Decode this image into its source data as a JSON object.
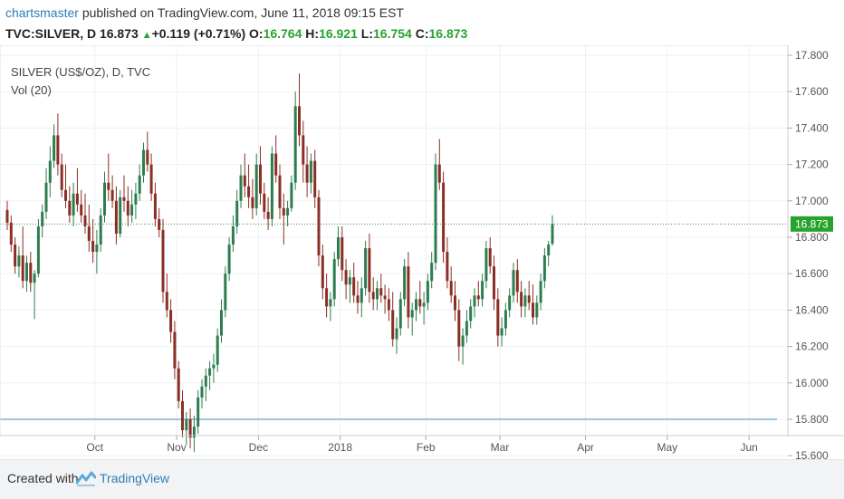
{
  "header": {
    "author": "chartsmaster",
    "published_text": "published on TradingView.com, June 11, 2018 09:15 EST",
    "symbol": "TVC:SILVER, D",
    "last": "16.873",
    "change": "+0.119 (+0.71%)",
    "open_label": "O:",
    "open": "16.764",
    "high_label": "H:",
    "high": "16.921",
    "low_label": "L:",
    "low": "16.754",
    "close_label": "C:",
    "close": "16.873"
  },
  "footer": {
    "created_with": "Created with",
    "brand": "TradingView"
  },
  "colors": {
    "up": "#2e7d4f",
    "down": "#8b2e24",
    "grid": "#eef0f2",
    "price_line": "#27a32d",
    "support": "#9fc6e0",
    "axis_text": "#555555"
  },
  "chart_data": {
    "type": "candlestick",
    "title": "SILVER (US$/OZ), D, TVC",
    "indicator": "Vol (20)",
    "ylim": [
      15.5,
      17.8
    ],
    "y_ticks": [
      "17.800",
      "17.600",
      "17.400",
      "17.200",
      "17.000",
      "16.800",
      "16.600",
      "16.400",
      "16.200",
      "16.000",
      "15.800",
      "15.600"
    ],
    "x_labels": [
      "Oct",
      "Nov",
      "Dec",
      "2018",
      "Feb",
      "Mar",
      "Apr",
      "May",
      "Jun"
    ],
    "x_label_pos": [
      22.5,
      43.5,
      64.5,
      85.5,
      107.5,
      126.5,
      148.5,
      169.5,
      190.5
    ],
    "last_price": 16.873,
    "support_level": 15.8,
    "candles": [
      [
        16.95,
        17.0,
        16.84,
        16.88
      ],
      [
        16.88,
        16.92,
        16.72,
        16.76
      ],
      [
        16.76,
        16.8,
        16.6,
        16.64
      ],
      [
        16.64,
        16.75,
        16.58,
        16.7
      ],
      [
        16.7,
        16.86,
        16.52,
        16.56
      ],
      [
        16.56,
        16.7,
        16.5,
        16.66
      ],
      [
        16.66,
        16.72,
        16.5,
        16.55
      ],
      [
        16.55,
        16.62,
        16.35,
        16.6
      ],
      [
        16.6,
        16.9,
        16.58,
        16.86
      ],
      [
        16.86,
        16.98,
        16.8,
        16.94
      ],
      [
        16.94,
        17.18,
        16.9,
        17.1
      ],
      [
        17.1,
        17.3,
        17.02,
        17.22
      ],
      [
        17.22,
        17.42,
        17.18,
        17.36
      ],
      [
        17.36,
        17.48,
        17.14,
        17.2
      ],
      [
        17.2,
        17.26,
        17.02,
        17.06
      ],
      [
        17.06,
        17.2,
        16.96,
        17.0
      ],
      [
        17.0,
        17.08,
        16.88,
        16.92
      ],
      [
        16.92,
        17.1,
        16.86,
        17.04
      ],
      [
        17.04,
        17.18,
        16.94,
        16.98
      ],
      [
        16.98,
        17.06,
        16.88,
        16.92
      ],
      [
        16.92,
        17.04,
        16.82,
        16.86
      ],
      [
        16.86,
        16.98,
        16.72,
        16.78
      ],
      [
        16.78,
        16.9,
        16.66,
        16.72
      ],
      [
        16.72,
        16.84,
        16.6,
        16.76
      ],
      [
        16.76,
        16.96,
        16.72,
        16.92
      ],
      [
        16.92,
        17.16,
        16.88,
        17.1
      ],
      [
        17.1,
        17.26,
        17.0,
        17.06
      ],
      [
        17.06,
        17.14,
        16.96,
        17.0
      ],
      [
        17.0,
        17.08,
        16.76,
        16.82
      ],
      [
        16.82,
        17.06,
        16.8,
        17.02
      ],
      [
        17.02,
        17.14,
        16.94,
        17.0
      ],
      [
        17.0,
        17.08,
        16.86,
        16.92
      ],
      [
        16.92,
        17.06,
        16.88,
        16.98
      ],
      [
        16.98,
        17.1,
        16.9,
        17.04
      ],
      [
        17.04,
        17.2,
        17.0,
        17.14
      ],
      [
        17.14,
        17.32,
        17.1,
        17.28
      ],
      [
        17.28,
        17.38,
        17.16,
        17.2
      ],
      [
        17.2,
        17.26,
        17.0,
        17.04
      ],
      [
        17.04,
        17.1,
        16.86,
        16.9
      ],
      [
        16.9,
        16.96,
        16.8,
        16.84
      ],
      [
        16.84,
        16.9,
        16.44,
        16.5
      ],
      [
        16.5,
        16.6,
        16.36,
        16.4
      ],
      [
        16.4,
        16.46,
        16.22,
        16.28
      ],
      [
        16.28,
        16.34,
        16.02,
        16.08
      ],
      [
        16.08,
        16.12,
        15.86,
        15.9
      ],
      [
        15.9,
        15.96,
        15.7,
        15.74
      ],
      [
        15.74,
        15.84,
        15.66,
        15.8
      ],
      [
        15.8,
        15.86,
        15.64,
        15.7
      ],
      [
        15.7,
        15.82,
        15.62,
        15.76
      ],
      [
        15.76,
        15.96,
        15.72,
        15.92
      ],
      [
        15.92,
        16.02,
        15.86,
        15.98
      ],
      [
        15.98,
        16.08,
        15.9,
        16.04
      ],
      [
        16.04,
        16.12,
        15.96,
        16.08
      ],
      [
        16.08,
        16.16,
        16.0,
        16.1
      ],
      [
        16.1,
        16.3,
        16.06,
        16.26
      ],
      [
        16.26,
        16.46,
        16.22,
        16.4
      ],
      [
        16.4,
        16.64,
        16.36,
        16.6
      ],
      [
        16.6,
        16.8,
        16.56,
        16.76
      ],
      [
        16.76,
        16.92,
        16.72,
        16.86
      ],
      [
        16.86,
        17.06,
        16.82,
        17.0
      ],
      [
        17.0,
        17.2,
        16.96,
        17.14
      ],
      [
        17.14,
        17.26,
        17.02,
        17.08
      ],
      [
        17.08,
        17.2,
        16.96,
        17.02
      ],
      [
        17.02,
        17.12,
        16.9,
        16.96
      ],
      [
        16.96,
        17.26,
        16.92,
        17.2
      ],
      [
        17.2,
        17.3,
        16.98,
        17.04
      ],
      [
        17.04,
        17.1,
        16.9,
        16.94
      ],
      [
        16.94,
        17.02,
        16.84,
        16.9
      ],
      [
        16.9,
        17.3,
        16.86,
        17.26
      ],
      [
        17.26,
        17.36,
        17.1,
        17.14
      ],
      [
        17.14,
        17.2,
        16.9,
        16.96
      ],
      [
        16.96,
        17.04,
        16.76,
        16.92
      ],
      [
        16.92,
        17.0,
        16.86,
        16.96
      ],
      [
        16.96,
        17.14,
        16.94,
        17.1
      ],
      [
        17.1,
        17.6,
        17.06,
        17.52
      ],
      [
        17.52,
        17.7,
        17.3,
        17.36
      ],
      [
        17.36,
        17.44,
        17.1,
        17.2
      ],
      [
        17.2,
        17.3,
        17.02,
        17.1
      ],
      [
        17.1,
        17.26,
        17.04,
        17.22
      ],
      [
        17.22,
        17.28,
        16.96,
        17.02
      ],
      [
        17.02,
        17.06,
        16.64,
        16.7
      ],
      [
        16.7,
        16.76,
        16.46,
        16.52
      ],
      [
        16.52,
        16.6,
        16.36,
        16.42
      ],
      [
        16.42,
        16.5,
        16.34,
        16.46
      ],
      [
        16.46,
        16.72,
        16.42,
        16.68
      ],
      [
        16.68,
        16.86,
        16.64,
        16.8
      ],
      [
        16.8,
        16.86,
        16.56,
        16.62
      ],
      [
        16.62,
        16.68,
        16.46,
        16.54
      ],
      [
        16.54,
        16.62,
        16.44,
        16.58
      ],
      [
        16.58,
        16.66,
        16.44,
        16.48
      ],
      [
        16.48,
        16.56,
        16.38,
        16.44
      ],
      [
        16.44,
        16.58,
        16.36,
        16.52
      ],
      [
        16.52,
        16.78,
        16.48,
        16.74
      ],
      [
        16.74,
        16.82,
        16.44,
        16.5
      ],
      [
        16.5,
        16.58,
        16.4,
        16.46
      ],
      [
        16.46,
        16.56,
        16.4,
        16.52
      ],
      [
        16.52,
        16.6,
        16.44,
        16.48
      ],
      [
        16.48,
        16.54,
        16.38,
        16.46
      ],
      [
        16.46,
        16.52,
        16.34,
        16.4
      ],
      [
        16.4,
        16.5,
        16.2,
        16.24
      ],
      [
        16.24,
        16.36,
        16.16,
        16.3
      ],
      [
        16.3,
        16.5,
        16.26,
        16.46
      ],
      [
        16.46,
        16.68,
        16.42,
        16.64
      ],
      [
        16.64,
        16.72,
        16.3,
        16.36
      ],
      [
        16.36,
        16.44,
        16.26,
        16.4
      ],
      [
        16.4,
        16.5,
        16.34,
        16.46
      ],
      [
        16.46,
        16.56,
        16.38,
        16.42
      ],
      [
        16.42,
        16.5,
        16.32,
        16.44
      ],
      [
        16.44,
        16.6,
        16.4,
        16.56
      ],
      [
        16.56,
        16.72,
        16.52,
        16.66
      ],
      [
        16.66,
        17.26,
        16.62,
        17.2
      ],
      [
        17.2,
        17.34,
        17.06,
        17.1
      ],
      [
        17.1,
        17.16,
        16.66,
        16.72
      ],
      [
        16.72,
        16.8,
        16.52,
        16.56
      ],
      [
        16.56,
        16.64,
        16.44,
        16.48
      ],
      [
        16.48,
        16.56,
        16.34,
        16.4
      ],
      [
        16.4,
        16.46,
        16.12,
        16.2
      ],
      [
        16.2,
        16.3,
        16.1,
        16.26
      ],
      [
        16.26,
        16.4,
        16.22,
        16.34
      ],
      [
        16.34,
        16.46,
        16.3,
        16.42
      ],
      [
        16.42,
        16.52,
        16.36,
        16.48
      ],
      [
        16.48,
        16.56,
        16.42,
        16.46
      ],
      [
        16.46,
        16.6,
        16.42,
        16.56
      ],
      [
        16.56,
        16.78,
        16.52,
        16.74
      ],
      [
        16.74,
        16.8,
        16.6,
        16.64
      ],
      [
        16.64,
        16.7,
        16.4,
        16.46
      ],
      [
        16.46,
        16.52,
        16.2,
        16.26
      ],
      [
        16.26,
        16.36,
        16.2,
        16.3
      ],
      [
        16.3,
        16.44,
        16.26,
        16.4
      ],
      [
        16.4,
        16.52,
        16.36,
        16.48
      ],
      [
        16.48,
        16.66,
        16.44,
        16.62
      ],
      [
        16.62,
        16.68,
        16.44,
        16.5
      ],
      [
        16.5,
        16.56,
        16.36,
        16.42
      ],
      [
        16.42,
        16.52,
        16.36,
        16.48
      ],
      [
        16.48,
        16.56,
        16.4,
        16.44
      ],
      [
        16.44,
        16.54,
        16.32,
        16.36
      ],
      [
        16.36,
        16.48,
        16.32,
        16.44
      ],
      [
        16.44,
        16.6,
        16.4,
        16.56
      ],
      [
        16.56,
        16.74,
        16.52,
        16.7
      ],
      [
        16.7,
        16.78,
        16.64,
        16.76
      ],
      [
        16.764,
        16.921,
        16.754,
        16.873
      ]
    ]
  }
}
